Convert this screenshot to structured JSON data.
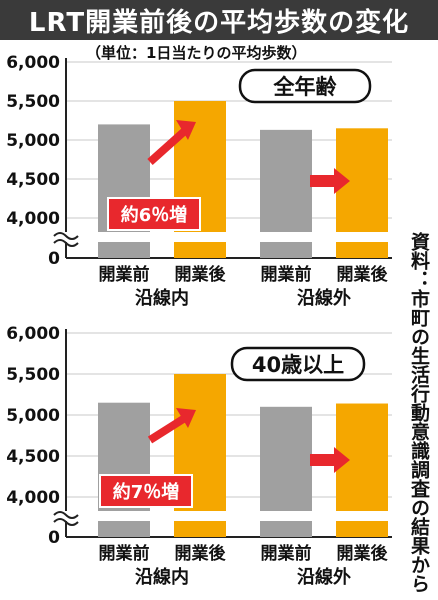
{
  "title": "LRT開業前後の平均歩数の変化",
  "unit_note": "（単位：1日当たりの平均歩数）",
  "source_note": "資料：市町の生活行動意識調査の結果から",
  "colors": {
    "before": "#a0a0a0",
    "after": "#f5a700",
    "arrow": "#e8282d",
    "callout_bg": "#e8282d"
  },
  "chart_data": [
    {
      "type": "bar",
      "title": "全年齢",
      "categories": [
        "開業前",
        "開業後",
        "開業前",
        "開業後"
      ],
      "groups": [
        "沿線内",
        "沿線外"
      ],
      "values": [
        5200,
        5500,
        5130,
        5150
      ],
      "y_ticks": [
        "6,000",
        "5,500",
        "5,000",
        "4,500",
        "4,000",
        "0"
      ],
      "ylim": [
        4000,
        6000
      ],
      "axis_break": true,
      "annotation": "約6％増"
    },
    {
      "type": "bar",
      "title": "40歳以上",
      "categories": [
        "開業前",
        "開業後",
        "開業前",
        "開業後"
      ],
      "groups": [
        "沿線内",
        "沿線外"
      ],
      "values": [
        5150,
        5500,
        5100,
        5140
      ],
      "y_ticks": [
        "6,000",
        "5,500",
        "5,000",
        "4,500",
        "4,000",
        "0"
      ],
      "ylim": [
        4000,
        6000
      ],
      "axis_break": true,
      "annotation": "約7％増"
    }
  ]
}
